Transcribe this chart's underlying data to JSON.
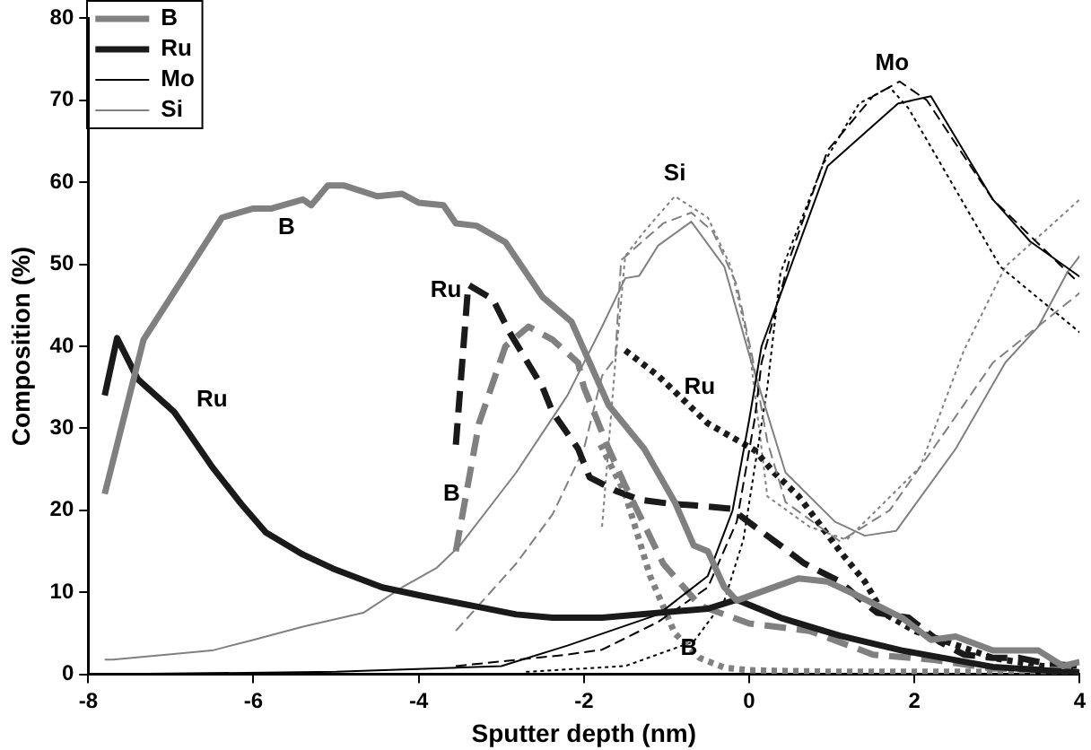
{
  "chart_data": {
    "type": "line",
    "xlabel": "Sputter depth (nm)",
    "ylabel": "Composition (%)",
    "xlim": [
      -8,
      4
    ],
    "xticks": [
      -8,
      -6,
      -4,
      -2,
      0,
      2,
      4
    ],
    "ylim": [
      0,
      80
    ],
    "yticks": [
      0,
      10,
      20,
      30,
      40,
      50,
      60,
      70,
      80
    ],
    "grid": false,
    "legend": "top left",
    "marker": "none",
    "series": [
      {
        "name": "B",
        "color": "#808080",
        "line_style": "solid",
        "x": [
          -7.8,
          -7.33,
          -6.38,
          -6.0,
          -5.78,
          -5.4,
          -5.3,
          -5.1,
          -4.9,
          -4.5,
          -4.2,
          -4.0,
          -3.7,
          -3.55,
          -3.3,
          -2.95,
          -2.5,
          -2.15,
          -1.93,
          -1.7,
          -1.27,
          -0.9,
          -0.67,
          -0.5,
          -0.3,
          -0.15,
          0.6,
          0.95,
          1.33,
          1.85,
          2.2,
          2.5,
          2.95,
          3.5,
          3.8,
          4.0
        ],
        "values": [
          22,
          40.8,
          55.7,
          56.8,
          56.8,
          57.9,
          57.2,
          59.6,
          59.6,
          58.3,
          58.6,
          57.5,
          57.2,
          55,
          54.7,
          52.7,
          46,
          43,
          38,
          32.8,
          27.5,
          21,
          15.7,
          15,
          10.6,
          9,
          11.7,
          11.3,
          9.5,
          6.9,
          4.2,
          4.6,
          2.9,
          2.9,
          1,
          1.5
        ]
      },
      {
        "name": "Ru",
        "color": "#1a1a1a",
        "line_style": "solid",
        "x": [
          -7.8,
          -7.65,
          -7.4,
          -6.96,
          -6.8,
          -6.5,
          -6.15,
          -5.85,
          -5.4,
          -5.04,
          -4.44,
          -3.93,
          -3.27,
          -2.82,
          -2.38,
          -1.78,
          -0.5,
          -0.15,
          0.38,
          1.1,
          1.85,
          2.95,
          4.0
        ],
        "values": [
          34,
          41,
          36,
          32,
          29.7,
          25.3,
          20.8,
          17.3,
          14.6,
          12.9,
          10.6,
          9.5,
          8.2,
          7.3,
          6.9,
          6.9,
          8,
          9.1,
          6.9,
          4.7,
          2.9,
          0.9,
          0.2
        ]
      },
      {
        "name": "Mo",
        "color": "#000000",
        "line_style": "solid",
        "x": [
          -7.8,
          -5,
          -3,
          -2.2,
          -1.1,
          -0.5,
          -0.2,
          0,
          0.15,
          0.95,
          1.8,
          2.2,
          2.95,
          3.4,
          3.93,
          4.0
        ],
        "values": [
          0,
          0.3,
          1,
          3.5,
          7.3,
          12,
          20,
          31,
          40,
          62,
          69.6,
          70.5,
          57.9,
          52.8,
          49,
          48.5
        ]
      },
      {
        "name": "Si",
        "color": "#808080",
        "line_style": "solid",
        "x": [
          -7.8,
          -7.7,
          -6.5,
          -6.0,
          -5.4,
          -4.67,
          -4.2,
          -3.78,
          -3.5,
          -2.82,
          -2.2,
          -1.78,
          -1.5,
          -1.33,
          -1.1,
          -0.7,
          -0.3,
          0,
          0.44,
          1.04,
          1.4,
          1.78,
          2.5,
          3.1,
          3.5,
          3.85,
          4.0
        ],
        "values": [
          1.8,
          1.8,
          2.9,
          4.2,
          5.8,
          7.5,
          10.6,
          13,
          15.7,
          24.6,
          34,
          42.4,
          48.3,
          48.6,
          52.3,
          55.2,
          49.7,
          39,
          24.6,
          18.6,
          16.9,
          17.5,
          27.5,
          38,
          42.4,
          49,
          51
        ]
      },
      {
        "color": "#808080",
        "line_style": "dashed",
        "x": [
          -3.55,
          -3.27,
          -2.95,
          -2.67,
          -2.38,
          -2.07,
          -2.0,
          -1.7,
          -1.5,
          -1.04,
          -0.6,
          0,
          0.73,
          1.5,
          2.2,
          2.95,
          4.0
        ],
        "values": [
          15,
          30.6,
          40,
          42.4,
          40.8,
          38,
          35,
          27.5,
          23,
          13.5,
          8.4,
          6.2,
          5.3,
          2.4,
          1.8,
          0.7,
          0.5
        ]
      },
      {
        "color": "#1a1a1a",
        "line_style": "dashed",
        "x": [
          -3.55,
          -3.4,
          -3.1,
          -2.9,
          -2.5,
          -2.38,
          -2.07,
          -1.93,
          -1.62,
          -1.33,
          -0.96,
          -0.67,
          -0.22,
          0.07,
          0.38,
          0.67,
          1.1,
          1.27,
          1.55,
          1.93,
          2.3,
          2.6,
          2.95,
          3.27,
          3.6,
          4.0
        ],
        "values": [
          28,
          47.5,
          45.7,
          41.7,
          35,
          32,
          27.5,
          24,
          22.4,
          21.3,
          20.8,
          20.6,
          20.2,
          18,
          15.7,
          13.5,
          11.3,
          9.8,
          7.5,
          6.9,
          4,
          2.4,
          2,
          2,
          1.3,
          1
        ]
      },
      {
        "color": "#000000",
        "line_style": "dashed",
        "x": [
          -3.55,
          -2.2,
          -1.78,
          -1.1,
          -0.5,
          -0.15,
          0.07,
          0.15,
          0.5,
          0.95,
          1.5,
          1.82,
          2.15,
          2.95,
          3.93,
          4.0
        ],
        "values": [
          1,
          2.4,
          3,
          6.4,
          10.6,
          18.6,
          31.3,
          38,
          51,
          63.9,
          70.5,
          72.3,
          70,
          57.9,
          48.3,
          48
        ]
      },
      {
        "color": "#808080",
        "line_style": "dashed",
        "x": [
          -3.55,
          -2.82,
          -2.38,
          -2.0,
          -1.78,
          -1.62,
          -1.55,
          -1.04,
          -0.7,
          -0.44,
          -0.15,
          0.04,
          0.22,
          0.44,
          1.1,
          1.7,
          2.38,
          2.95,
          4.0
        ],
        "values": [
          5.3,
          13.5,
          19.5,
          27.5,
          36.4,
          38.6,
          50.5,
          55,
          56.3,
          54,
          47.5,
          38.6,
          28.4,
          21,
          16.2,
          20,
          29.7,
          38,
          46.5
        ]
      },
      {
        "color": "#808080",
        "line_style": "dotted",
        "x": [
          -1.8,
          -1.5,
          -1.2,
          -0.9,
          -0.6,
          -0.3,
          0,
          1,
          2,
          3,
          4
        ],
        "values": [
          28,
          22,
          12,
          5,
          2,
          0.8,
          0.5,
          0.3,
          0.3,
          0.3,
          0.3
        ]
      },
      {
        "color": "#1a1a1a",
        "line_style": "dotted",
        "x": [
          -1.5,
          -1.1,
          -0.5,
          0.07,
          0.3,
          0.6,
          1.1,
          1.4,
          1.62,
          2.0,
          2.38,
          2.95,
          3.55,
          4.0
        ],
        "values": [
          39.5,
          36.4,
          30.6,
          27.3,
          24.6,
          21.7,
          15,
          11.3,
          7.5,
          5.3,
          4,
          2,
          1,
          0.7
        ]
      },
      {
        "color": "#000000",
        "line_style": "dotted",
        "x": [
          -2.7,
          -1.5,
          -0.67,
          -0.3,
          -0.07,
          0.22,
          0.38,
          0.9,
          1.33,
          1.7,
          1.93,
          3.04,
          4.0
        ],
        "values": [
          0.3,
          1,
          4,
          9,
          16.4,
          35,
          49,
          62.3,
          69.6,
          71.6,
          69,
          49.7,
          41.7
        ]
      },
      {
        "color": "#808080",
        "line_style": "dotted",
        "x": [
          -1.78,
          -1.62,
          -1.5,
          -1.27,
          -0.9,
          -0.5,
          -0.22,
          0,
          0.22,
          0.73,
          1.18,
          2.07,
          2.6,
          3.1,
          4.0
        ],
        "values": [
          18,
          38,
          51,
          54,
          58.3,
          55.7,
          49.7,
          40,
          21.7,
          18,
          16.4,
          25.3,
          39.5,
          49.7,
          57.9
        ]
      }
    ],
    "annotations": [
      "B",
      "Ru",
      "Ru",
      "B",
      "Si",
      "Mo",
      "Ru",
      "B"
    ]
  }
}
